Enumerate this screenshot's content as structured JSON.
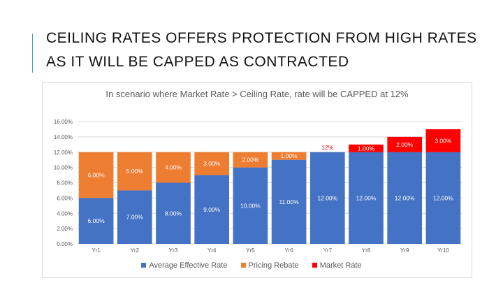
{
  "slide": {
    "title": "CEILING RATES OFFERS PROTECTION FROM HIGH RATES AS IT WILL BE CAPPED AS CONTRACTED"
  },
  "chart_data": {
    "type": "bar",
    "stacked": true,
    "title": "In scenario where Market Rate > Ceiling Rate, rate will be CAPPED at 12%",
    "categories": [
      "Yr1",
      "Yr2",
      "Yr3",
      "Yr4",
      "Yr5",
      "Yr6",
      "Yr7",
      "Yr8",
      "Yr9",
      "Yr10"
    ],
    "series": [
      {
        "name": "Average Effective Rate",
        "color": "#4472c4",
        "values": [
          6,
          7,
          8,
          9,
          10,
          11,
          12,
          12,
          12,
          12
        ],
        "labels": [
          "6.00%",
          "7.00%",
          "8.00%",
          "9.00%",
          "10.00%",
          "11.00%",
          "12.00%",
          "12.00%",
          "12.00%",
          "12.00%"
        ]
      },
      {
        "name": "Pricing Rebate",
        "color": "#ed7d31",
        "values": [
          6,
          5,
          4,
          3,
          2,
          1,
          0,
          0,
          0,
          0
        ],
        "labels": [
          "6.00%",
          "5.00%",
          "4.00%",
          "3.00%",
          "2.00%",
          "1.00%",
          "",
          "",
          "",
          ""
        ]
      },
      {
        "name": "Market Rate",
        "color": "#ff0000",
        "values": [
          0,
          0,
          0,
          0,
          0,
          0,
          0,
          1,
          2,
          3
        ],
        "labels": [
          "",
          "",
          "",
          "",
          "",
          "",
          "12%",
          "1.00%",
          "2.00%",
          "3.00%"
        ]
      }
    ],
    "ylim": [
      0,
      16
    ],
    "yticks": [
      "0.00%",
      "2.00%",
      "4.00%",
      "6.00%",
      "8.00%",
      "10.00%",
      "12.00%",
      "14.00%",
      "16.00%"
    ],
    "grid": true,
    "legend": "bottom"
  }
}
